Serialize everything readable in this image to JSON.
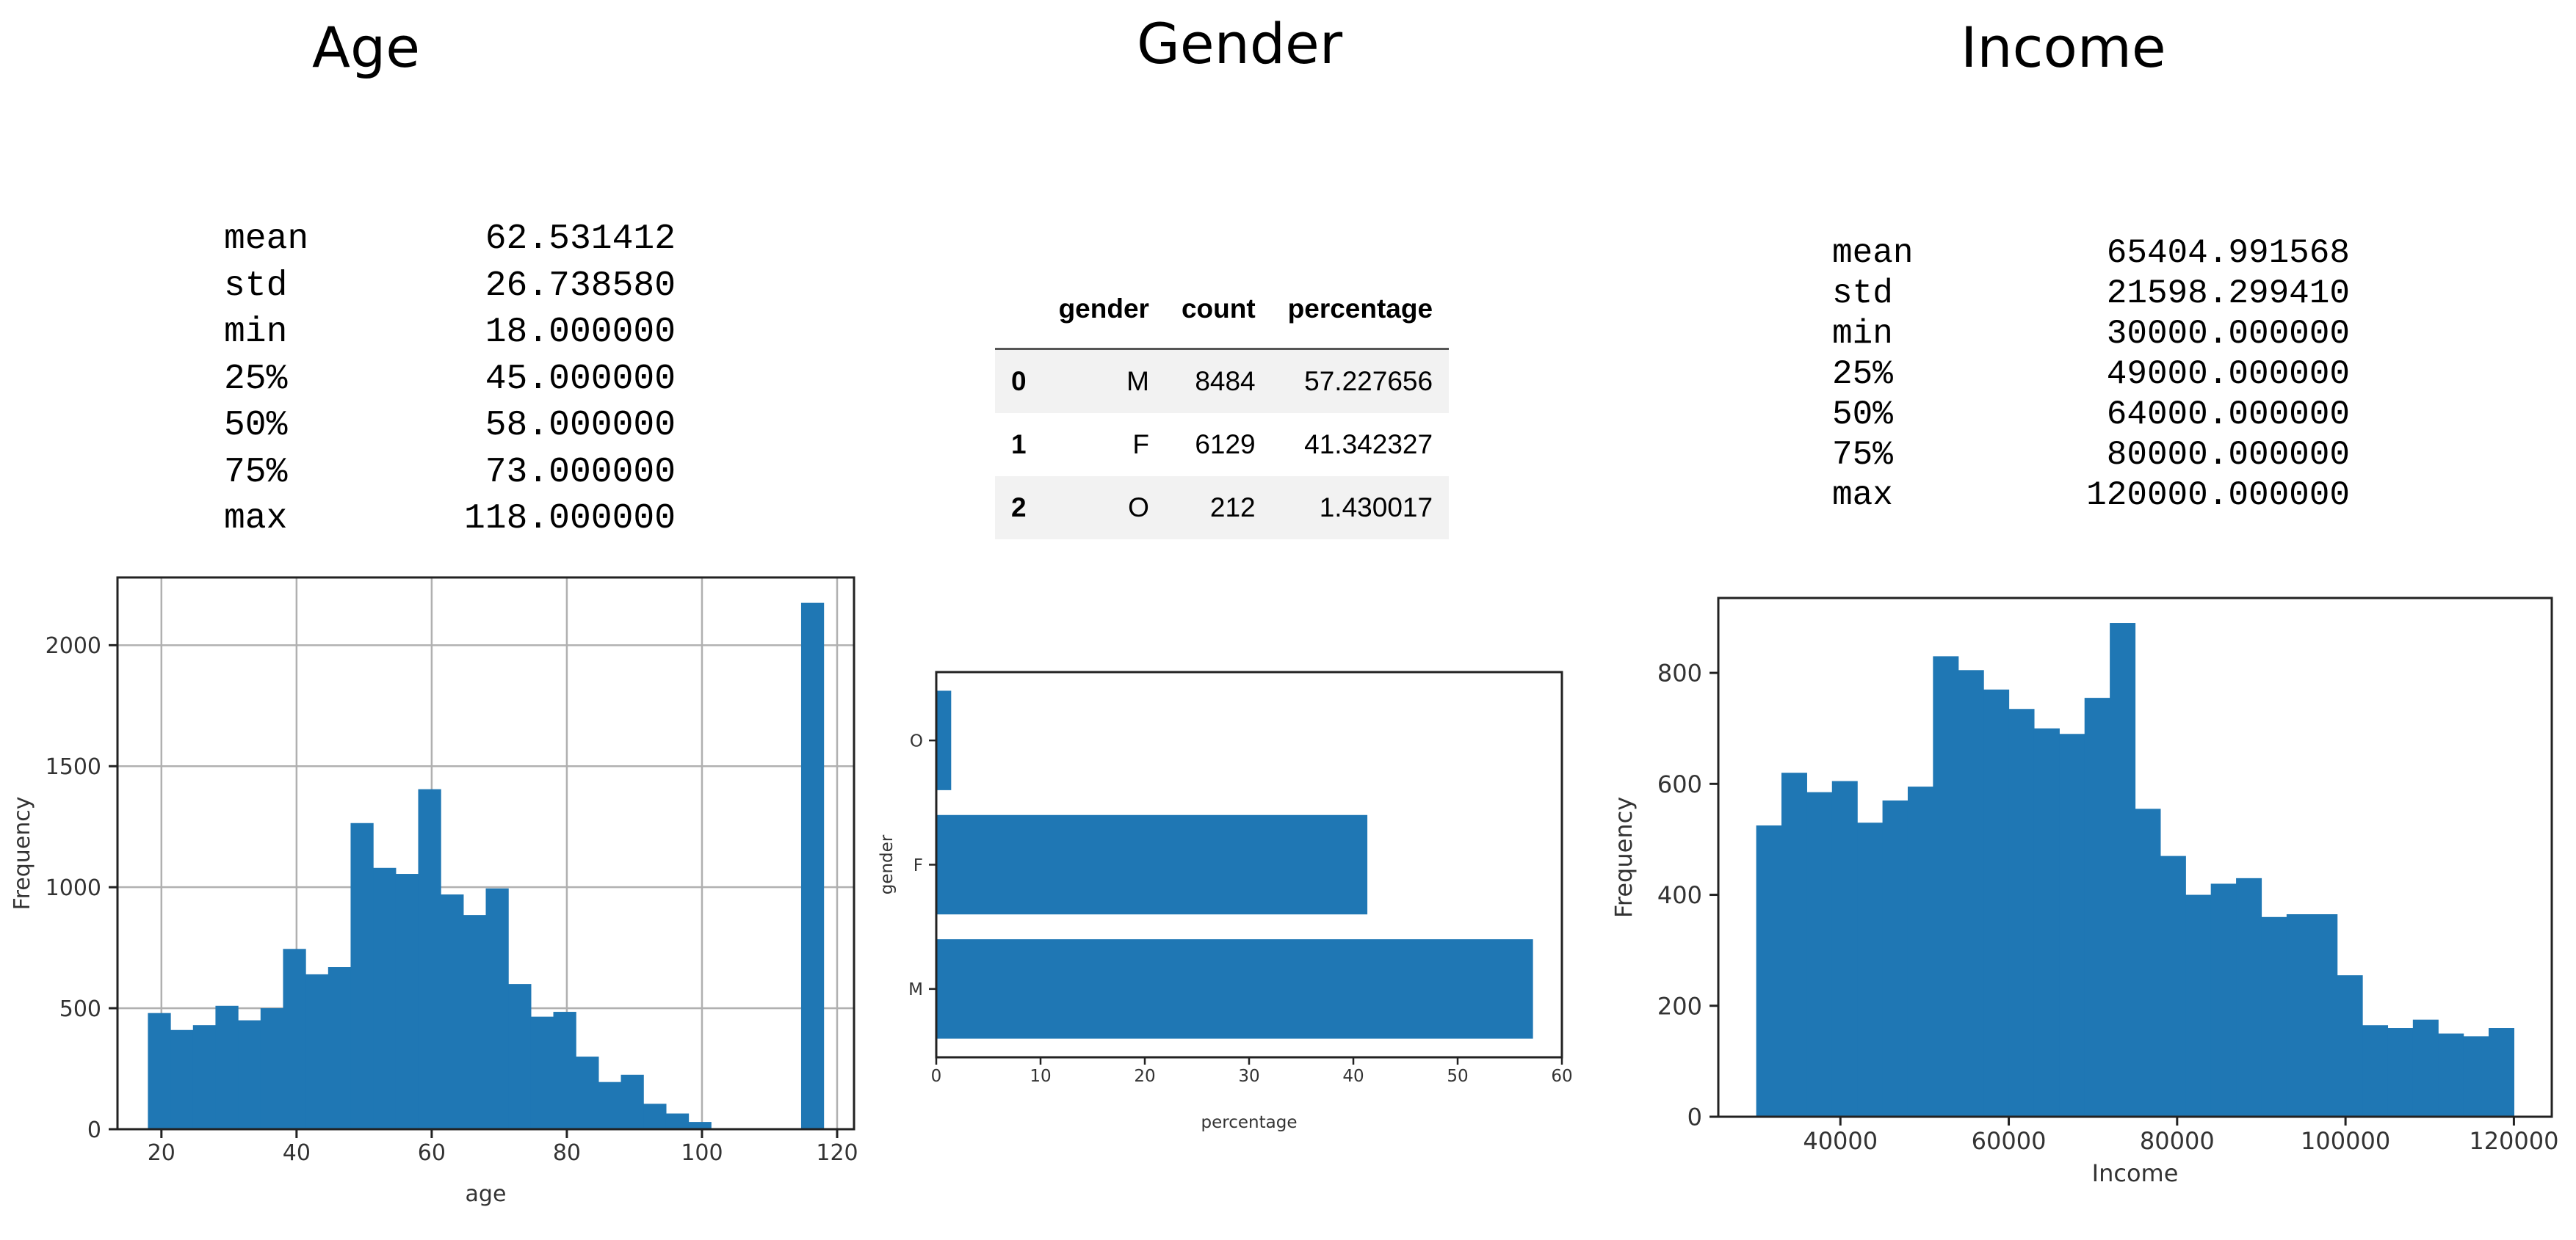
{
  "titles": {
    "age": "Age",
    "gender": "Gender",
    "income": "Income"
  },
  "age_stats": [
    {
      "label": "mean",
      "value": "62.531412"
    },
    {
      "label": "std",
      "value": "26.738580"
    },
    {
      "label": "min",
      "value": "18.000000"
    },
    {
      "label": "25%",
      "value": "45.000000"
    },
    {
      "label": "50%",
      "value": "58.000000"
    },
    {
      "label": "75%",
      "value": "73.000000"
    },
    {
      "label": "max",
      "value": "118.000000"
    }
  ],
  "income_stats": [
    {
      "label": "mean",
      "value": "65404.991568"
    },
    {
      "label": "std",
      "value": "21598.299410"
    },
    {
      "label": "min",
      "value": "30000.000000"
    },
    {
      "label": "25%",
      "value": "49000.000000"
    },
    {
      "label": "50%",
      "value": "64000.000000"
    },
    {
      "label": "75%",
      "value": "80000.000000"
    },
    {
      "label": "max",
      "value": "120000.000000"
    }
  ],
  "gender_table": {
    "columns": [
      "gender",
      "count",
      "percentage"
    ],
    "rows": [
      {
        "index": "0",
        "gender": "M",
        "count": "8484",
        "percentage": "57.227656"
      },
      {
        "index": "1",
        "gender": "F",
        "count": "6129",
        "percentage": "41.342327"
      },
      {
        "index": "2",
        "gender": "O",
        "count": "212",
        "percentage": "1.430017"
      }
    ]
  },
  "chart_data": [
    {
      "type": "bar",
      "xlabel": "age",
      "ylabel": "Frequency",
      "xlim": [
        13.5,
        122.5
      ],
      "ylim": [
        0,
        2280
      ],
      "xticks": [
        20,
        40,
        60,
        80,
        100,
        120
      ],
      "yticks": [
        0,
        500,
        1000,
        1500,
        2000
      ],
      "grid": true,
      "color": "#1f77b4",
      "bins": [
        {
          "x0": 18,
          "x1": 21.33,
          "count": 480
        },
        {
          "x0": 21.33,
          "x1": 24.67,
          "count": 410
        },
        {
          "x0": 24.67,
          "x1": 28,
          "count": 430
        },
        {
          "x0": 28,
          "x1": 31.33,
          "count": 510
        },
        {
          "x0": 31.33,
          "x1": 34.67,
          "count": 450
        },
        {
          "x0": 34.67,
          "x1": 38,
          "count": 500
        },
        {
          "x0": 38,
          "x1": 41.33,
          "count": 745
        },
        {
          "x0": 41.33,
          "x1": 44.67,
          "count": 640
        },
        {
          "x0": 44.67,
          "x1": 48,
          "count": 670
        },
        {
          "x0": 48,
          "x1": 51.33,
          "count": 1265
        },
        {
          "x0": 51.33,
          "x1": 54.67,
          "count": 1080
        },
        {
          "x0": 54.67,
          "x1": 58,
          "count": 1055
        },
        {
          "x0": 58,
          "x1": 61.33,
          "count": 1405
        },
        {
          "x0": 61.33,
          "x1": 64.67,
          "count": 970
        },
        {
          "x0": 64.67,
          "x1": 68,
          "count": 885
        },
        {
          "x0": 68,
          "x1": 71.33,
          "count": 995
        },
        {
          "x0": 71.33,
          "x1": 74.67,
          "count": 600
        },
        {
          "x0": 74.67,
          "x1": 78,
          "count": 465
        },
        {
          "x0": 78,
          "x1": 81.33,
          "count": 485
        },
        {
          "x0": 81.33,
          "x1": 84.67,
          "count": 300
        },
        {
          "x0": 84.67,
          "x1": 88,
          "count": 195
        },
        {
          "x0": 88,
          "x1": 91.33,
          "count": 225
        },
        {
          "x0": 91.33,
          "x1": 94.67,
          "count": 105
        },
        {
          "x0": 94.67,
          "x1": 98,
          "count": 65
        },
        {
          "x0": 98,
          "x1": 101.33,
          "count": 30
        },
        {
          "x0": 114.67,
          "x1": 118,
          "count": 2175
        }
      ]
    },
    {
      "type": "bar",
      "orientation": "horizontal",
      "categories": [
        "M",
        "F",
        "O"
      ],
      "values": [
        57.227656,
        41.342327,
        1.430017
      ],
      "xlabel": "percentage",
      "ylabel": "gender",
      "xlim": [
        0,
        60
      ],
      "xticks": [
        0,
        10,
        20,
        30,
        40,
        50,
        60
      ],
      "grid": false,
      "color": "#1f77b4"
    },
    {
      "type": "bar",
      "xlabel": "Income",
      "ylabel": "Frequency",
      "xlim": [
        25500,
        124500
      ],
      "ylim": [
        0,
        935
      ],
      "xticks": [
        40000,
        60000,
        80000,
        100000,
        120000
      ],
      "yticks": [
        0,
        200,
        400,
        600,
        800
      ],
      "grid": false,
      "color": "#1f77b4",
      "bins": [
        {
          "x0": 30000,
          "x1": 33000,
          "count": 525
        },
        {
          "x0": 33000,
          "x1": 36000,
          "count": 620
        },
        {
          "x0": 36000,
          "x1": 39000,
          "count": 585
        },
        {
          "x0": 39000,
          "x1": 42000,
          "count": 605
        },
        {
          "x0": 42000,
          "x1": 45000,
          "count": 530
        },
        {
          "x0": 45000,
          "x1": 48000,
          "count": 570
        },
        {
          "x0": 48000,
          "x1": 51000,
          "count": 595
        },
        {
          "x0": 51000,
          "x1": 54000,
          "count": 830
        },
        {
          "x0": 54000,
          "x1": 57000,
          "count": 805
        },
        {
          "x0": 57000,
          "x1": 60000,
          "count": 770
        },
        {
          "x0": 60000,
          "x1": 63000,
          "count": 735
        },
        {
          "x0": 63000,
          "x1": 66000,
          "count": 700
        },
        {
          "x0": 66000,
          "x1": 69000,
          "count": 690
        },
        {
          "x0": 69000,
          "x1": 72000,
          "count": 755
        },
        {
          "x0": 72000,
          "x1": 75000,
          "count": 890
        },
        {
          "x0": 75000,
          "x1": 78000,
          "count": 555
        },
        {
          "x0": 78000,
          "x1": 81000,
          "count": 470
        },
        {
          "x0": 81000,
          "x1": 84000,
          "count": 400
        },
        {
          "x0": 84000,
          "x1": 87000,
          "count": 420
        },
        {
          "x0": 87000,
          "x1": 90000,
          "count": 430
        },
        {
          "x0": 90000,
          "x1": 93000,
          "count": 360
        },
        {
          "x0": 93000,
          "x1": 96000,
          "count": 365
        },
        {
          "x0": 96000,
          "x1": 99000,
          "count": 365
        },
        {
          "x0": 99000,
          "x1": 102000,
          "count": 255
        },
        {
          "x0": 102000,
          "x1": 105000,
          "count": 165
        },
        {
          "x0": 105000,
          "x1": 108000,
          "count": 160
        },
        {
          "x0": 108000,
          "x1": 111000,
          "count": 175
        },
        {
          "x0": 111000,
          "x1": 114000,
          "count": 150
        },
        {
          "x0": 114000,
          "x1": 117000,
          "count": 145
        },
        {
          "x0": 117000,
          "x1": 120000,
          "count": 160
        }
      ]
    }
  ]
}
